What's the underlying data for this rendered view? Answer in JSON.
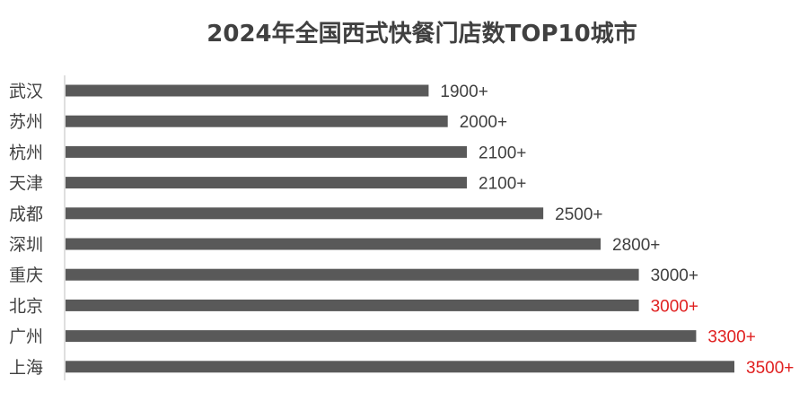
{
  "chart_data": {
    "type": "bar",
    "orientation": "horizontal",
    "title": "2024年全国西式快餐门店数TOP10城市",
    "categories": [
      "武汉",
      "苏州",
      "杭州",
      "天津",
      "成都",
      "深圳",
      "重庆",
      "北京",
      "广州",
      "上海"
    ],
    "values": [
      1900,
      2000,
      2100,
      2100,
      2500,
      2800,
      3000,
      3000,
      3300,
      3500
    ],
    "data_labels": [
      "1900+",
      "2000+",
      "2100+",
      "2100+",
      "2500+",
      "2800+",
      "3000+",
      "3000+",
      "3300+",
      "3500+"
    ],
    "highlighted": [
      false,
      false,
      false,
      false,
      false,
      false,
      false,
      true,
      true,
      true
    ],
    "xlim": [
      0,
      3500
    ],
    "grid": false,
    "legend": "none",
    "colors": {
      "bar": "#595959",
      "label": "#404040",
      "highlight_label": "#e02020",
      "axis": "#bfbfbf",
      "title": "#404040"
    }
  }
}
